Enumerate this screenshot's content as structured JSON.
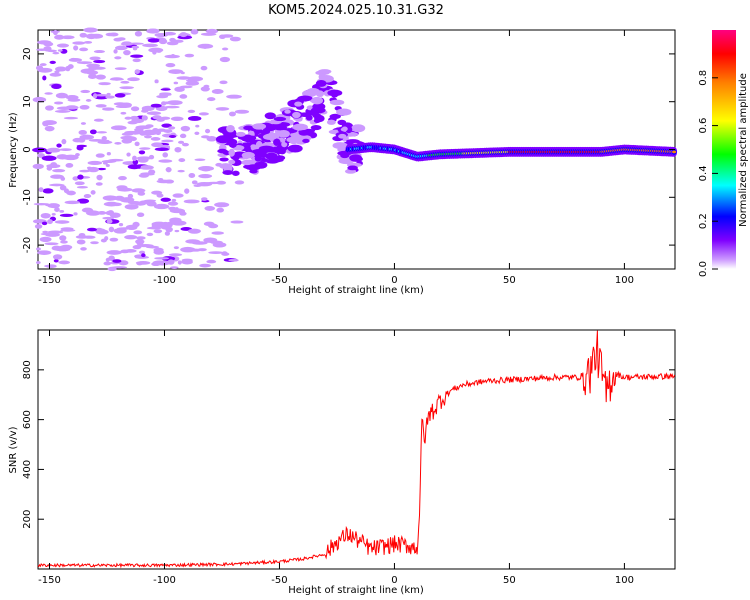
{
  "title": "KOM5.2024.025.10.31.G32",
  "chart_data": [
    {
      "type": "heatmap",
      "xlabel": "Height of straight line (km)",
      "ylabel": "Frequency (Hz)",
      "xlim": [
        -155,
        122
      ],
      "ylim": [
        -25,
        25
      ],
      "xticks": [
        -150,
        -100,
        -50,
        0,
        50,
        100
      ],
      "yticks": [
        -20,
        -10,
        0,
        10,
        20
      ],
      "colorbar": {
        "label": "Normalized spectral amplitude",
        "range": [
          0,
          1
        ],
        "ticks": [
          "0.0",
          "0.2",
          "0.4",
          "0.6",
          "0.8"
        ],
        "colormap": "gist_rainbow_r",
        "colors": [
          "#ffffff",
          "#cc99ff",
          "#7f00ff",
          "#0000ff",
          "#00ffff",
          "#00ff00",
          "#ffff00",
          "#ff7f00",
          "#ff0000",
          "#ff0080"
        ]
      },
      "ridge": {
        "description_points": [
          {
            "x": -60,
            "y": 1
          },
          {
            "x": -45,
            "y": 4
          },
          {
            "x": -35,
            "y": 8
          },
          {
            "x": -30,
            "y": 14
          },
          {
            "x": -25,
            "y": 7
          },
          {
            "x": -20,
            "y": 0
          },
          {
            "x": -10,
            "y": 0.5
          },
          {
            "x": 0,
            "y": 0
          },
          {
            "x": 10,
            "y": -1.5
          },
          {
            "x": 20,
            "y": -1
          },
          {
            "x": 50,
            "y": -0.5
          },
          {
            "x": 90,
            "y": -0.5
          },
          {
            "x": 100,
            "y": 0
          },
          {
            "x": 122,
            "y": -0.5
          }
        ]
      }
    },
    {
      "type": "line",
      "xlabel": "Height of straight line (km)",
      "ylabel": "SNR (v/v)",
      "xlim": [
        -155,
        122
      ],
      "ylim": [
        0,
        960
      ],
      "xticks": [
        -150,
        -100,
        -50,
        0,
        50,
        100
      ],
      "yticks": [
        200,
        400,
        600,
        800
      ],
      "series": [
        {
          "color": "#ff0000",
          "x": [
            -155,
            -130,
            -100,
            -70,
            -50,
            -40,
            -30,
            -25,
            -20,
            -15,
            -10,
            -5,
            0,
            5,
            10,
            11,
            12,
            13,
            15,
            18,
            20,
            25,
            30,
            40,
            50,
            60,
            70,
            80,
            85,
            88,
            92,
            95,
            100,
            110,
            122
          ],
          "values": [
            15,
            15,
            15,
            20,
            30,
            40,
            60,
            110,
            140,
            110,
            80,
            90,
            100,
            95,
            85,
            250,
            600,
            520,
            620,
            650,
            680,
            720,
            740,
            755,
            760,
            765,
            770,
            770,
            790,
            880,
            700,
            790,
            770,
            772,
            775
          ]
        }
      ]
    }
  ]
}
